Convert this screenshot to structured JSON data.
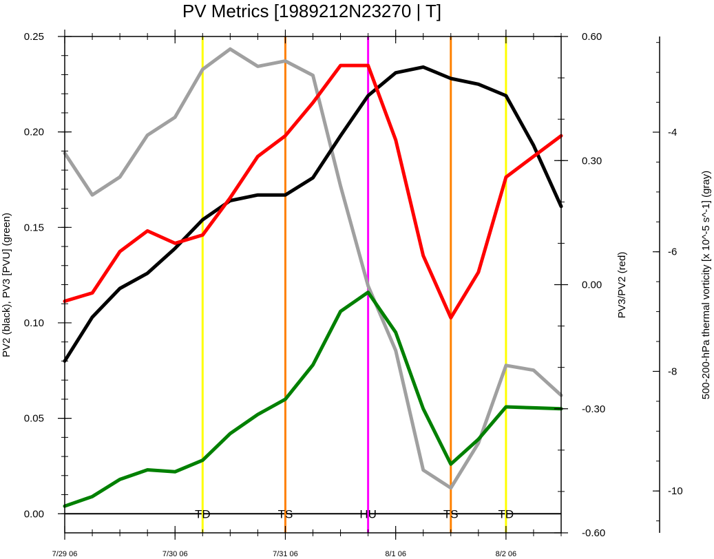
{
  "chart_data": {
    "type": "line",
    "title": "PV Metrics [1989212N23270 | T]",
    "x_tick_labels": [
      "7/29 06",
      "7/30 06",
      "7/31 06",
      "8/1 06",
      "8/2 06"
    ],
    "x_tick_positions": [
      0,
      4,
      8,
      12,
      16
    ],
    "xlim": [
      0,
      18
    ],
    "left_axis": {
      "label": "PV2 (black), PV3 [PVU] (green)",
      "ylim": [
        -0.01,
        0.25
      ],
      "ticks": [
        "0.00",
        "0.05",
        "0.10",
        "0.15",
        "0.20",
        "0.25"
      ]
    },
    "right_axis": {
      "label": "PV3/PV2 (red)",
      "ylim": [
        -0.6,
        0.6
      ],
      "ticks": [
        "-0.60",
        "-0.30",
        "0.00",
        "0.30",
        "0.60"
      ]
    },
    "far_right_axis": {
      "label": "500-200-hPa thermal vorticity [x 10^-5 s^-1] (gray)",
      "ylim": [
        -10.7,
        -2.4
      ],
      "ticks": [
        "-10",
        "-8",
        "-6",
        "-4"
      ]
    },
    "series": [
      {
        "name": "PV2",
        "axis": "left",
        "color": "#000000",
        "x": [
          0,
          1,
          2,
          3,
          4,
          5,
          6,
          7,
          8,
          9,
          10,
          11,
          12,
          13,
          14,
          15,
          16,
          17,
          18
        ],
        "values": [
          0.08,
          0.103,
          0.118,
          0.126,
          0.139,
          0.154,
          0.164,
          0.167,
          0.167,
          0.176,
          0.198,
          0.219,
          0.231,
          0.234,
          0.228,
          0.225,
          0.219,
          0.193,
          0.161
        ]
      },
      {
        "name": "PV3",
        "axis": "left",
        "color": "#008000",
        "x": [
          0,
          1,
          2,
          3,
          4,
          5,
          6,
          7,
          8,
          9,
          10,
          11,
          12,
          13,
          14,
          15,
          16,
          17,
          18
        ],
        "values": [
          0.004,
          0.009,
          0.018,
          0.023,
          0.022,
          0.028,
          0.042,
          0.052,
          0.06,
          0.078,
          0.106,
          0.116,
          0.095,
          0.055,
          0.026,
          0.039,
          0.056,
          0.0555,
          0.055
        ]
      },
      {
        "name": "PV3/PV2",
        "axis": "right",
        "color": "#ff0000",
        "x": [
          0,
          1,
          2,
          3,
          4,
          5,
          6,
          7,
          8,
          9,
          10,
          11,
          12,
          13,
          14,
          15,
          16,
          17,
          18
        ],
        "values": [
          -0.04,
          -0.02,
          0.08,
          0.13,
          0.1,
          0.12,
          0.21,
          0.31,
          0.36,
          0.44,
          0.53,
          0.53,
          0.35,
          0.07,
          -0.08,
          0.03,
          0.26,
          0.31,
          0.36
        ]
      },
      {
        "name": "thermal vorticity",
        "axis": "far_right",
        "color": "#a0a0a0",
        "x": [
          0,
          1,
          2,
          3,
          4,
          5,
          6,
          7,
          8,
          9,
          10,
          11,
          12,
          13,
          14,
          15,
          16,
          17,
          18
        ],
        "values": [
          -4.35,
          -5.05,
          -4.75,
          -4.05,
          -3.75,
          -2.95,
          -2.61,
          -2.9,
          -2.81,
          -3.05,
          -4.9,
          -6.57,
          -7.65,
          -9.65,
          -9.95,
          -9.2,
          -7.9,
          -7.98,
          -8.4
        ]
      }
    ],
    "vertical_lines": [
      {
        "x": 5,
        "color": "#ffff00",
        "label": "TD"
      },
      {
        "x": 8,
        "color": "#ff8000",
        "label": "TS"
      },
      {
        "x": 11,
        "color": "#ff00ff",
        "label": "HU"
      },
      {
        "x": 14,
        "color": "#ff8000",
        "label": "TS"
      },
      {
        "x": 16,
        "color": "#ffff00",
        "label": "TD"
      }
    ],
    "grid": false,
    "legend": "none"
  }
}
